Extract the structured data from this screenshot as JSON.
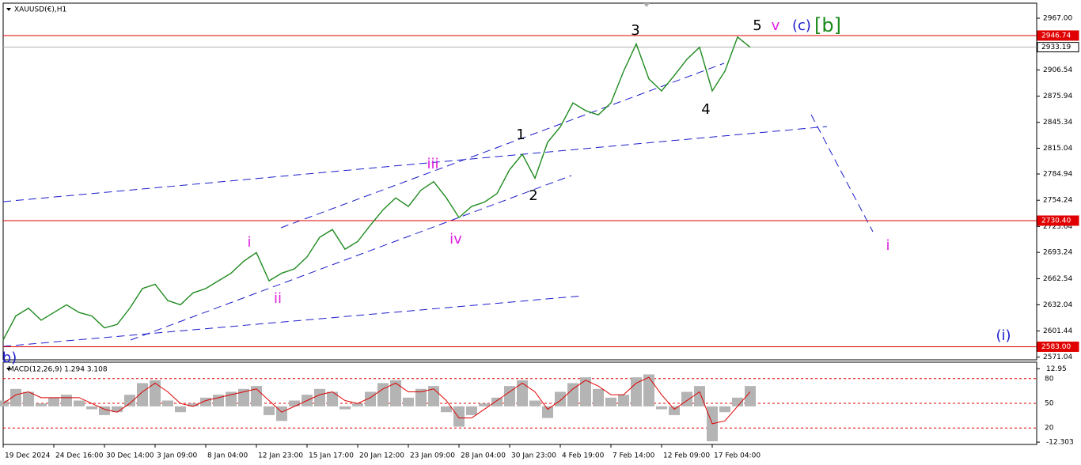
{
  "chart_data": [
    {
      "type": "line",
      "title": "XAUUSD(€),H1",
      "color": "#1f8a1f",
      "categories": [
        "19 Dec 2024",
        null,
        null,
        null,
        "24 Dec 16:00",
        null,
        null,
        null,
        "30 Dec 14:00",
        null,
        null,
        null,
        "3 Jan 09:00",
        null,
        null,
        null,
        "8 Jan 04:00",
        null,
        null,
        null,
        "12 Jan 23:00",
        null,
        null,
        null,
        "15 Jan 17:00",
        null,
        null,
        null,
        "20 Jan 12:00",
        null,
        null,
        null,
        "23 Jan 09:00",
        null,
        null,
        null,
        "28 Jan 04:00",
        null,
        null,
        null,
        "30 Jan 23:00",
        null,
        null,
        null,
        "4 Feb 19:00",
        null,
        null,
        null,
        "7 Feb 14:00",
        null,
        null,
        null,
        "12 Feb 09:00",
        null,
        null,
        null,
        "17 Feb 04:00",
        null,
        null,
        null
      ],
      "values": [
        2591,
        2619,
        2628,
        2614,
        2623,
        2632,
        2623,
        2619,
        2605,
        2609,
        2628,
        2651,
        2656,
        2637,
        2632,
        2646,
        2651,
        2660,
        2669,
        2683,
        2693,
        2660,
        2669,
        2674,
        2688,
        2711,
        2720,
        2697,
        2706,
        2725,
        2743,
        2757,
        2747,
        2766,
        2776,
        2757,
        2734,
        2747,
        2752,
        2762,
        2790,
        2808,
        2780,
        2822,
        2840,
        2868,
        2859,
        2854,
        2868,
        2905,
        2937,
        2896,
        2882,
        2900,
        2919,
        2933,
        2882,
        2905,
        2945,
        2933
      ],
      "ylim": [
        2567.7,
        2984.6
      ],
      "yticks": [
        {
          "value": 2967,
          "label": "2967.00"
        },
        2906.54,
        2875.94,
        2845.34,
        2815.04,
        2784.94,
        2754.24,
        2723.64,
        2693.24,
        2662.54,
        2632.04,
        2601.44,
        2571.04
      ],
      "levels": [
        {
          "value": 2946.74,
          "color": "#e00000"
        },
        {
          "value": 2933.19,
          "color": "#b0b0b0"
        },
        {
          "value": 2730.4,
          "label": "2730.40",
          "color": "#e00000"
        },
        {
          "value": 2583,
          "label": "2583.00",
          "color": "#e00000"
        }
      ],
      "annotations": [
        {
          "text": "3",
          "color": "#000000"
        },
        {
          "text": "5",
          "color": "#000000"
        },
        {
          "text": "v",
          "color": "#e020e0"
        },
        {
          "text": "(c)",
          "color": "#1c1ccc"
        },
        {
          "text": "[b]",
          "color": "#1a8a1a"
        },
        {
          "text": "1",
          "color": "#000000"
        },
        {
          "text": "2",
          "color": "#000000"
        },
        {
          "text": "4",
          "color": "#000000"
        },
        {
          "text": "iii",
          "color": "#e020e0"
        },
        {
          "text": "iv",
          "color": "#e020e0"
        },
        {
          "text": "i",
          "color": "#e020e0"
        },
        {
          "text": "ii",
          "color": "#e020e0"
        },
        {
          "text": "i",
          "color": "#e020e0"
        },
        {
          "text": "(i)",
          "color": "#1c1ccc"
        },
        {
          "text": "b)",
          "color": "#1c1ccc"
        }
      ]
    },
    {
      "type": "bar",
      "title": "MACD(12,26,9) 1.294 3.108",
      "color": "#b4b4b4",
      "signal_color": "#e00000",
      "values": [
        2,
        6,
        5,
        1,
        3,
        4,
        2,
        -1,
        -3,
        -2,
        4,
        8,
        9,
        2,
        -2,
        1,
        3,
        4,
        5,
        6,
        7,
        -3,
        -5,
        2,
        4,
        6,
        5,
        -1,
        1,
        5,
        8,
        9,
        3,
        6,
        7,
        -2,
        -7,
        -3,
        1,
        3,
        7,
        9,
        2,
        -4,
        5,
        8,
        10,
        6,
        3,
        4,
        10,
        11,
        -1,
        -3,
        5,
        7,
        -12,
        -2,
        3,
        7
      ],
      "signal": [
        1,
        4,
        5,
        3,
        3,
        3,
        3,
        1,
        -1,
        -2,
        1,
        5,
        8,
        5,
        1,
        0,
        2,
        3,
        4,
        5,
        6,
        2,
        -2,
        0,
        2,
        4,
        5,
        2,
        1,
        3,
        6,
        8,
        5,
        5,
        6,
        2,
        -4,
        -4,
        -1,
        2,
        5,
        8,
        5,
        -1,
        2,
        6,
        9,
        7,
        4,
        4,
        8,
        10,
        4,
        -1,
        2,
        5,
        -6,
        -5,
        0,
        5
      ],
      "ylim": [
        -13.1,
        15.2
      ],
      "yticks": [
        12.95,
        -12.303
      ],
      "y2lim": [
        0,
        100
      ],
      "y2ticks": [
        80,
        50,
        20
      ]
    }
  ]
}
